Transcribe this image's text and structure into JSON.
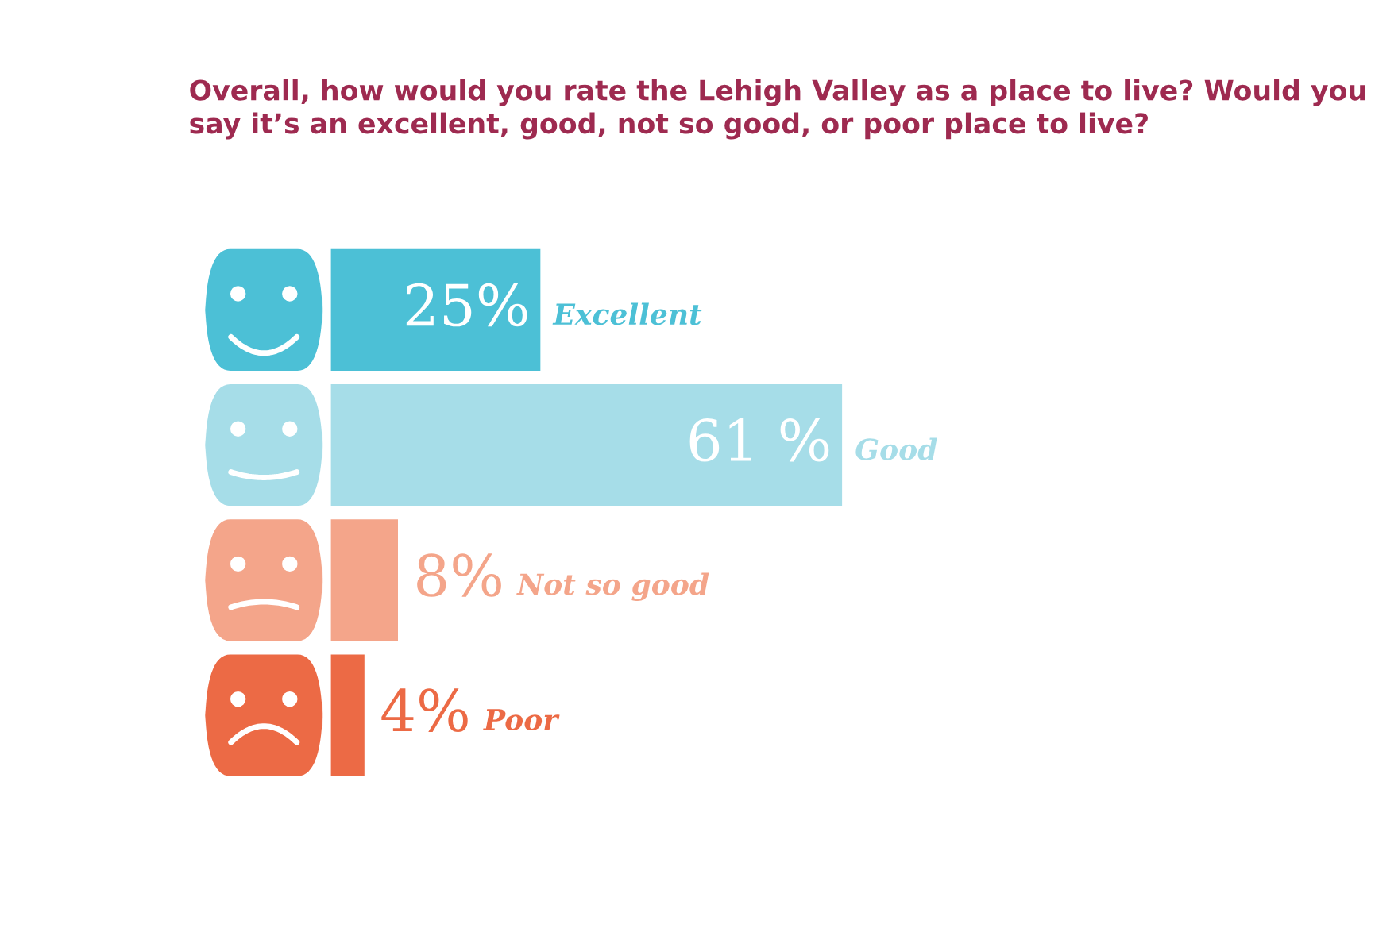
{
  "chart_data": {
    "type": "bar",
    "orientation": "horizontal",
    "title": "Overall, how would you rate the Lehigh Valley as a place to live? Would you say it’s an excellent, good, not so good, or poor place to live?",
    "categories": [
      "Excellent",
      "Good",
      "Not so good",
      "Poor"
    ],
    "values": [
      25,
      61,
      8,
      4
    ],
    "colors": [
      "#4cc0d6",
      "#a6dde8",
      "#f4a58a",
      "#ec6a45"
    ],
    "value_labels": [
      "25%",
      "61 %",
      "8%",
      "4%"
    ]
  }
}
